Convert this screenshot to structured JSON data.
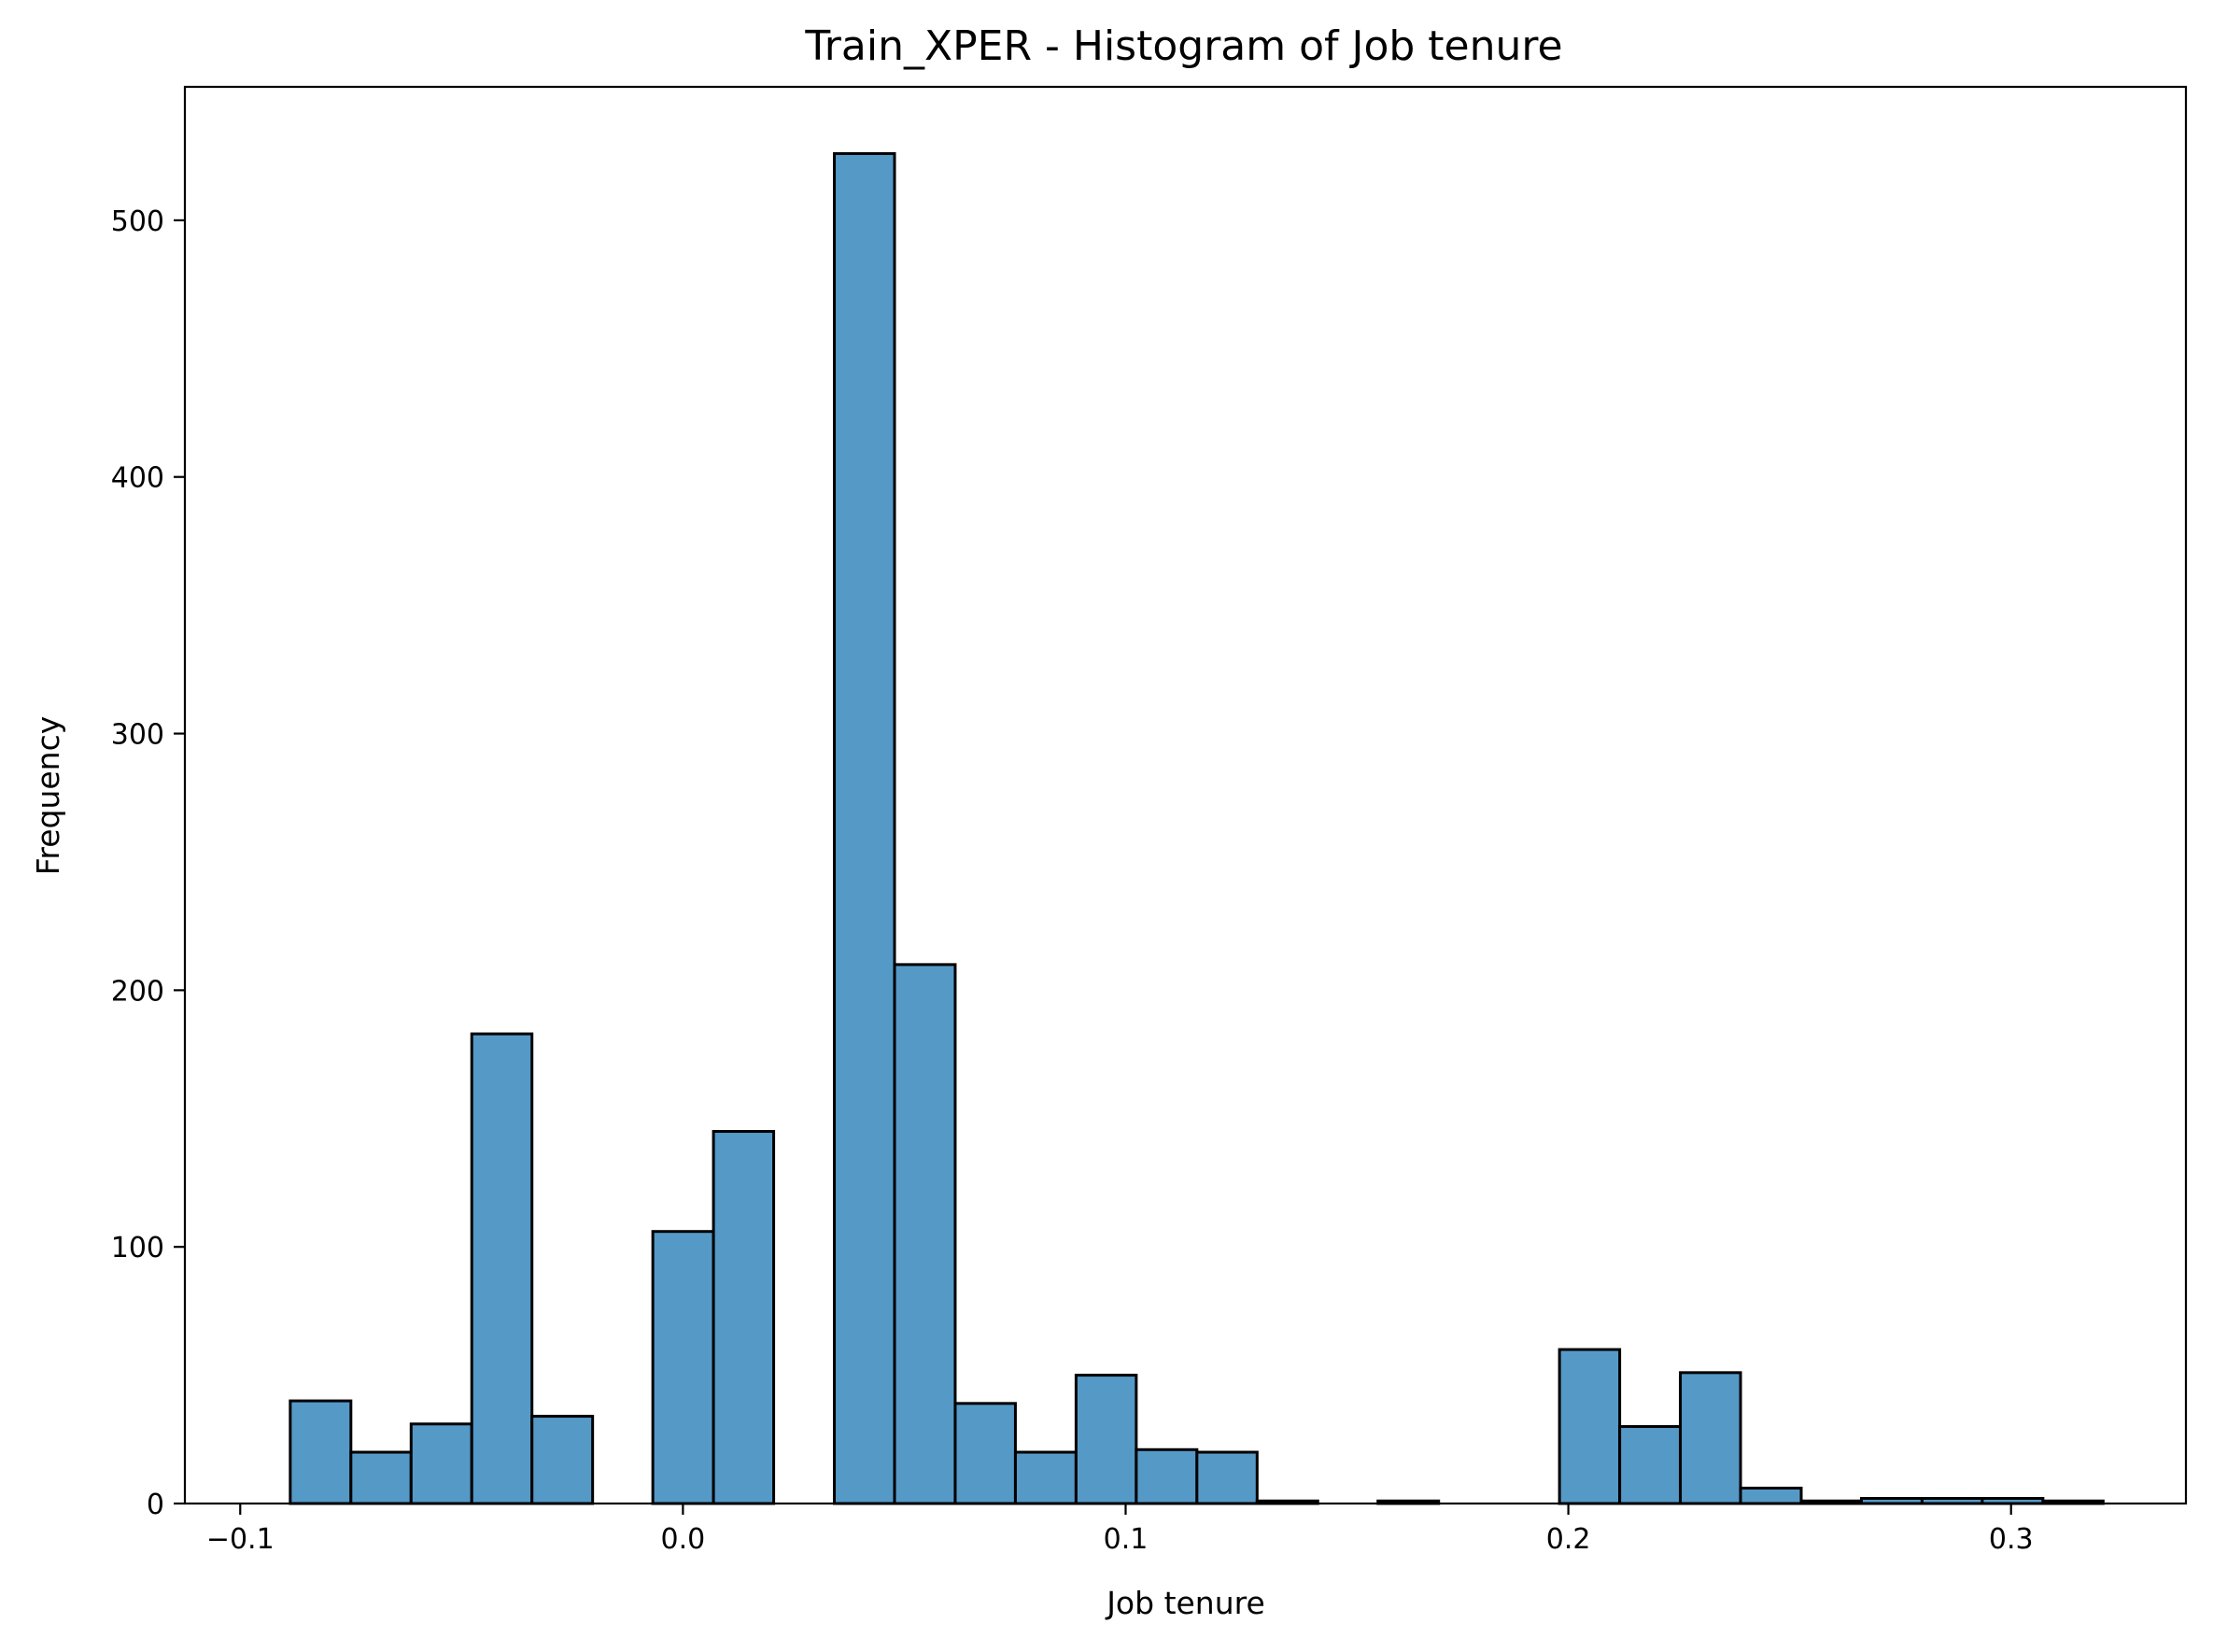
{
  "chart_data": {
    "type": "bar",
    "title": "Train_XPER - Histogram of Job tenure",
    "xlabel": "Job tenure",
    "ylabel": "Frequency",
    "xlim": [
      -0.1125,
      0.3395
    ],
    "ylim": [
      0,
      552
    ],
    "xticks": [
      -0.1,
      0.0,
      0.1,
      0.2,
      0.3
    ],
    "xtick_labels": [
      "−0.1",
      "0.0",
      "0.1",
      "0.2",
      "0.3"
    ],
    "yticks": [
      0,
      100,
      200,
      300,
      400,
      500
    ],
    "ytick_labels": [
      "0",
      "100",
      "200",
      "300",
      "400",
      "500"
    ],
    "bin_edges": [
      -0.0887,
      -0.075,
      -0.0614,
      -0.0477,
      -0.0341,
      -0.0204,
      -0.0068,
      0.0069,
      0.0205,
      0.0342,
      0.0478,
      0.0615,
      0.0751,
      0.0888,
      0.1024,
      0.1161,
      0.1297,
      0.1434,
      0.157,
      0.1707,
      0.1843,
      0.198,
      0.2116,
      0.2253,
      0.2389,
      0.2526,
      0.2662,
      0.2799,
      0.2935,
      0.3072,
      0.3208
    ],
    "values": [
      40,
      20,
      31,
      183,
      34,
      0,
      106,
      145,
      0,
      526,
      210,
      39,
      20,
      50,
      21,
      20,
      1,
      0,
      1,
      0,
      0,
      60,
      30,
      51,
      6,
      1,
      2,
      2,
      2,
      1
    ],
    "grid": false,
    "bar_color": "#5599c7",
    "edge_color": "#000000"
  }
}
